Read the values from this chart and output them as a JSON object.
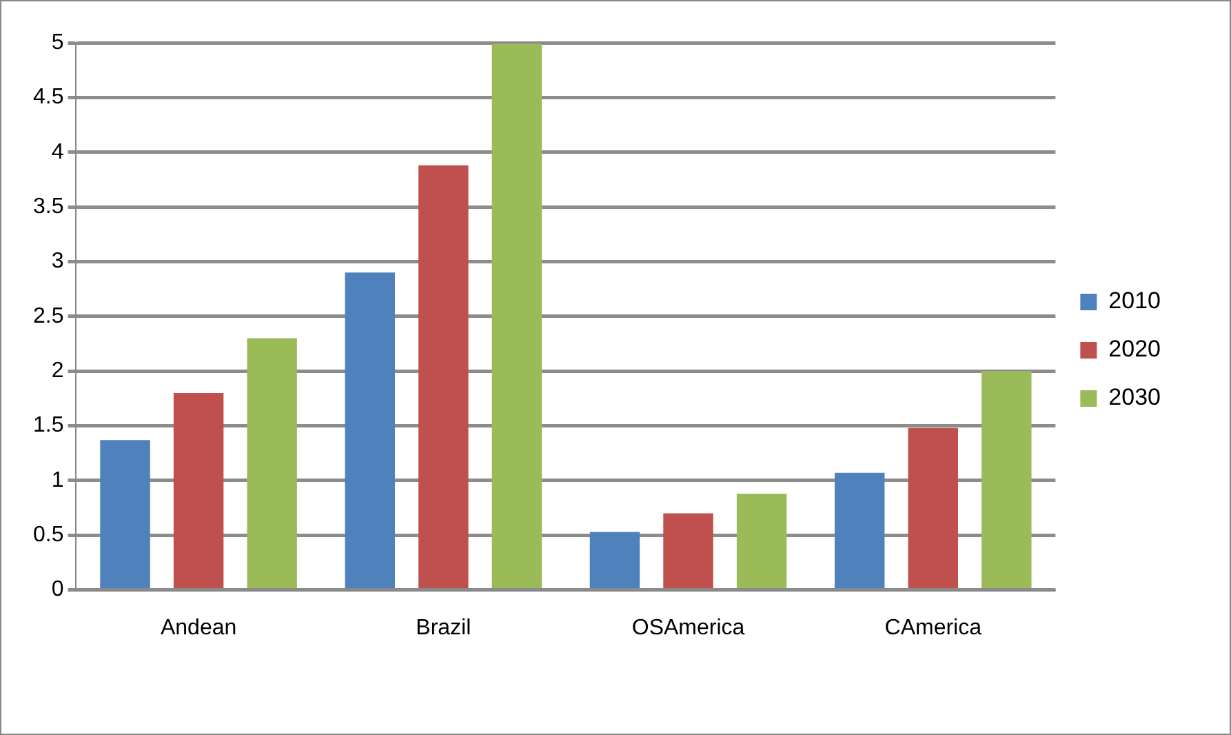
{
  "chart_data": {
    "type": "bar",
    "categories": [
      "Andean",
      "Brazil",
      "OSAmerica",
      "CAmerica"
    ],
    "series": [
      {
        "name": "2010",
        "color": "#4f81bd",
        "values": [
          1.37,
          2.9,
          0.53,
          1.07
        ]
      },
      {
        "name": "2020",
        "color": "#c0504d",
        "values": [
          1.8,
          3.88,
          0.7,
          1.48
        ]
      },
      {
        "name": "2030",
        "color": "#9bbb59",
        "values": [
          2.3,
          4.99,
          0.88,
          2.0
        ]
      }
    ],
    "ylim": [
      0,
      5
    ],
    "yticks": [
      0,
      0.5,
      1,
      1.5,
      2,
      2.5,
      3,
      3.5,
      4,
      4.5,
      5
    ],
    "grid": "y",
    "legend": "right"
  }
}
